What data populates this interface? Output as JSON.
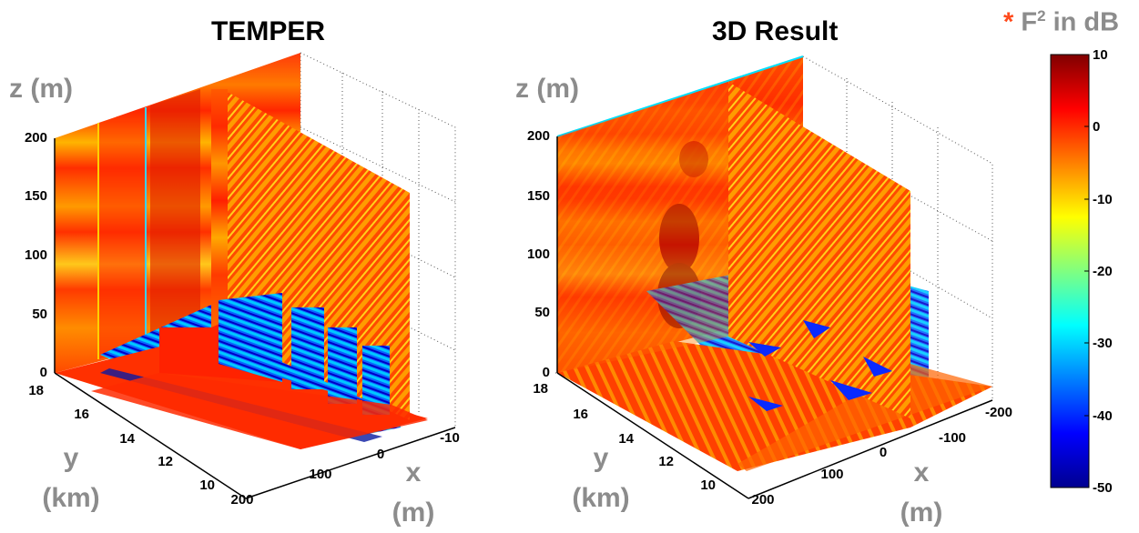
{
  "legend": {
    "asterisk": "*",
    "title_prefix": "F",
    "title_sup": "2",
    "title_suffix": " in dB",
    "ticks": [
      "10",
      "0",
      "-10",
      "-20",
      "-30",
      "-40",
      "-50"
    ]
  },
  "colormap": "jet",
  "chart_data": [
    {
      "type": "heatmap",
      "title": "TEMPER",
      "zlabel": "z (m)",
      "ylabel_line1": "y",
      "ylabel_line2": "(km)",
      "xlabel_line1": "x",
      "xlabel_line2": "(m)",
      "z_ticks": [
        "0",
        "50",
        "100",
        "150",
        "200"
      ],
      "y_ticks": [
        "10",
        "12",
        "14",
        "16",
        "18"
      ],
      "x_ticks": [
        "200",
        "100",
        "0",
        "-10"
      ],
      "zlim": [
        0,
        200
      ],
      "ylim_km": [
        10,
        18
      ],
      "colorbar_db": [
        -50,
        10
      ]
    },
    {
      "type": "heatmap",
      "title": "3D Result",
      "zlabel": "z (m)",
      "ylabel_line1": "y",
      "ylabel_line2": "(km)",
      "xlabel_line1": "x",
      "xlabel_line2": "(m)",
      "z_ticks": [
        "0",
        "50",
        "100",
        "150",
        "200"
      ],
      "y_ticks": [
        "10",
        "12",
        "14",
        "16",
        "18"
      ],
      "x_ticks": [
        "200",
        "100",
        "0",
        "-100",
        "-200"
      ],
      "zlim": [
        0,
        200
      ],
      "ylim_km": [
        10,
        18
      ],
      "colorbar_db": [
        -50,
        10
      ]
    }
  ]
}
